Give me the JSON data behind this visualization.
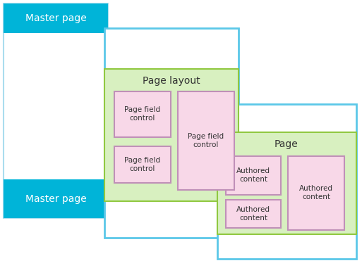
{
  "bg_color": "#ffffff",
  "cyan_color": "#00b4d8",
  "light_blue_border": "#5bc8e8",
  "green_bg": "#d8f0c0",
  "green_border": "#90c840",
  "pink_bg": "#f8d8e8",
  "pink_border": "#c090b8",
  "white_bg": "#ffffff",
  "master_page_border": "#aaddee",
  "text_dark": "#333333",
  "text_white": "#ffffff",
  "master_page_label": "Master page",
  "page_layout_label": "Page layout",
  "page_label": "Page",
  "page_field_control": "Page field\ncontrol",
  "authored_content": "Authored\ncontent",
  "fig_width": 5.13,
  "fig_height": 3.81,
  "dpi": 100
}
